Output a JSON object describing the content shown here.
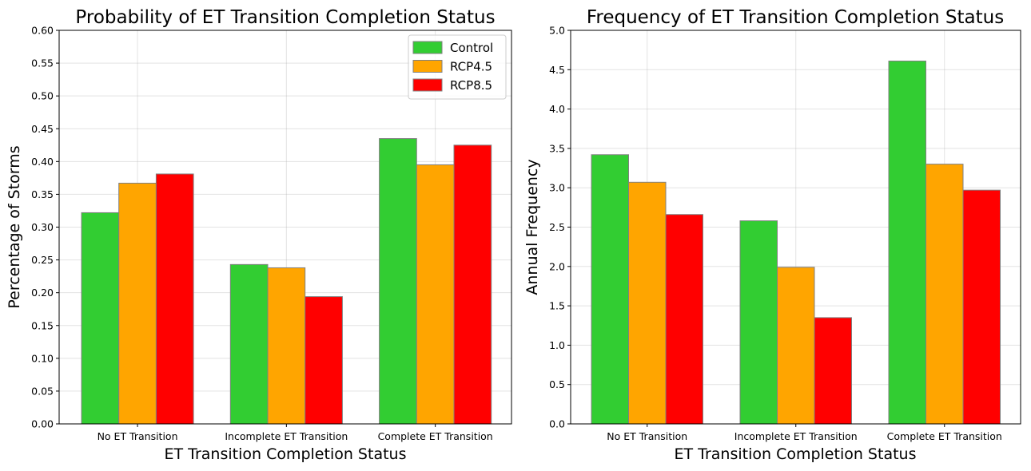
{
  "chart_data": [
    {
      "type": "bar",
      "title": "Probability of ET Transition Completion Status",
      "xlabel": "ET Transition Completion Status",
      "ylabel": "Percentage of Storms",
      "categories": [
        "No ET Transition",
        "Incomplete ET Transition",
        "Complete ET Transition"
      ],
      "ylim": [
        0,
        0.6
      ],
      "yticks": [
        0.0,
        0.05,
        0.1,
        0.15,
        0.2,
        0.25,
        0.3,
        0.35,
        0.4,
        0.45,
        0.5,
        0.55,
        0.6
      ],
      "ytick_decimals": 2,
      "grid": true,
      "legend": "top-right",
      "series": [
        {
          "name": "Control",
          "color": "#32cd32",
          "values": [
            0.322,
            0.243,
            0.435
          ]
        },
        {
          "name": "RCP4.5",
          "color": "#ffa500",
          "values": [
            0.367,
            0.238,
            0.395
          ]
        },
        {
          "name": "RCP8.5",
          "color": "#ff0000",
          "values": [
            0.381,
            0.194,
            0.425
          ]
        }
      ]
    },
    {
      "type": "bar",
      "title": "Frequency of ET Transition Completion Status",
      "xlabel": "ET Transition Completion Status",
      "ylabel": "Annual Frequency",
      "categories": [
        "No ET Transition",
        "Incomplete ET Transition",
        "Complete ET Transition"
      ],
      "ylim": [
        0,
        5.0
      ],
      "yticks": [
        0.0,
        0.5,
        1.0,
        1.5,
        2.0,
        2.5,
        3.0,
        3.5,
        4.0,
        4.5,
        5.0
      ],
      "ytick_decimals": 1,
      "grid": true,
      "legend": "none",
      "series": [
        {
          "name": "Control",
          "color": "#32cd32",
          "values": [
            3.42,
            2.58,
            4.61
          ]
        },
        {
          "name": "RCP4.5",
          "color": "#ffa500",
          "values": [
            3.07,
            1.99,
            3.3
          ]
        },
        {
          "name": "RCP8.5",
          "color": "#ff0000",
          "values": [
            2.66,
            1.35,
            2.97
          ]
        }
      ]
    }
  ]
}
